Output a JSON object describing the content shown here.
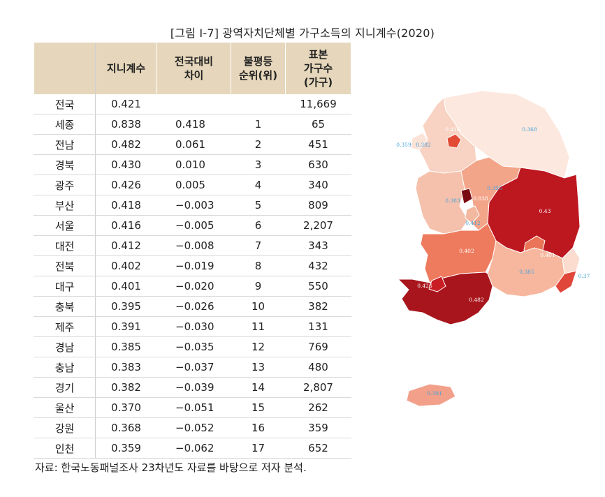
{
  "title": "[그림 Ⅰ-7] 광역자치단체별 가구소득의 지니계수(2020)",
  "columns": [
    "",
    "지니계수",
    "전국대비\n차이",
    "불평등\n순위(위)",
    "표본\n가구수\n(가구)"
  ],
  "rows": [
    {
      "region": "전국",
      "gini": "0.421",
      "diff": "",
      "rank": "",
      "samples": "11,669"
    },
    {
      "region": "세종",
      "gini": "0.838",
      "diff": "0.418",
      "rank": "1",
      "samples": "65"
    },
    {
      "region": "전남",
      "gini": "0.482",
      "diff": "0.061",
      "rank": "2",
      "samples": "451"
    },
    {
      "region": "경북",
      "gini": "0.430",
      "diff": "0.010",
      "rank": "3",
      "samples": "630"
    },
    {
      "region": "광주",
      "gini": "0.426",
      "diff": "0.005",
      "rank": "4",
      "samples": "340"
    },
    {
      "region": "부산",
      "gini": "0.418",
      "diff": "−0.003",
      "rank": "5",
      "samples": "809"
    },
    {
      "region": "서울",
      "gini": "0.416",
      "diff": "−0.005",
      "rank": "6",
      "samples": "2,207"
    },
    {
      "region": "대전",
      "gini": "0.412",
      "diff": "−0.008",
      "rank": "7",
      "samples": "343"
    },
    {
      "region": "전북",
      "gini": "0.402",
      "diff": "−0.019",
      "rank": "8",
      "samples": "432"
    },
    {
      "region": "대구",
      "gini": "0.401",
      "diff": "−0.020",
      "rank": "9",
      "samples": "550"
    },
    {
      "region": "충북",
      "gini": "0.395",
      "diff": "−0.026",
      "rank": "10",
      "samples": "382"
    },
    {
      "region": "제주",
      "gini": "0.391",
      "diff": "−0.030",
      "rank": "11",
      "samples": "131"
    },
    {
      "region": "경남",
      "gini": "0.385",
      "diff": "−0.035",
      "rank": "12",
      "samples": "769"
    },
    {
      "region": "충남",
      "gini": "0.383",
      "diff": "−0.037",
      "rank": "13",
      "samples": "480"
    },
    {
      "region": "경기",
      "gini": "0.382",
      "diff": "−0.039",
      "rank": "14",
      "samples": "2,807"
    },
    {
      "region": "울산",
      "gini": "0.370",
      "diff": "−0.051",
      "rank": "15",
      "samples": "262"
    },
    {
      "region": "강원",
      "gini": "0.368",
      "diff": "−0.052",
      "rank": "16",
      "samples": "359"
    },
    {
      "region": "인천",
      "gini": "0.359",
      "diff": "−0.062",
      "rank": "17",
      "samples": "652"
    }
  ],
  "map": {
    "labels": {
      "gyeonggi": "0.382",
      "seoul": "0.416",
      "incheon": "0.359",
      "gangwon": "0.368",
      "chungbuk": "0.395",
      "chungnam": "0.383",
      "sejong": "0.838",
      "daejeon": "0.412",
      "gyeongbuk": "0.43",
      "daegu": "0.401",
      "jeonbuk": "0.402",
      "gyeongnam": "0.385",
      "ulsan": "0.37",
      "busan": "0.418",
      "gwangju": "0.426",
      "jeonnam": "0.482",
      "jeju": "0.391"
    },
    "colors": {
      "gyeonggi": "#f8d2c2",
      "seoul": "#e34a33",
      "incheon": "#fbe3d7",
      "gangwon": "#fce8de",
      "chungbuk": "#f3a58a",
      "chungnam": "#f6c1ac",
      "sejong": "#7a0a12",
      "daejeon": "#f2b8a0",
      "gyeongbuk": "#bd1720",
      "daegu": "#ea7458",
      "jeonbuk": "#ee7b5e",
      "gyeongnam": "#f6b79e",
      "ulsan": "#fbdccf",
      "busan": "#e0463a",
      "gwangju": "#c91d24",
      "jeonnam": "#a8151c",
      "jeju": "#f2a08a",
      "label_on_light": "#4aa3d9",
      "label_on_dark": "#ffffff"
    }
  },
  "source": "자료: 한국노동패널조사 23차년도 자료를 바탕으로 저자 분석."
}
